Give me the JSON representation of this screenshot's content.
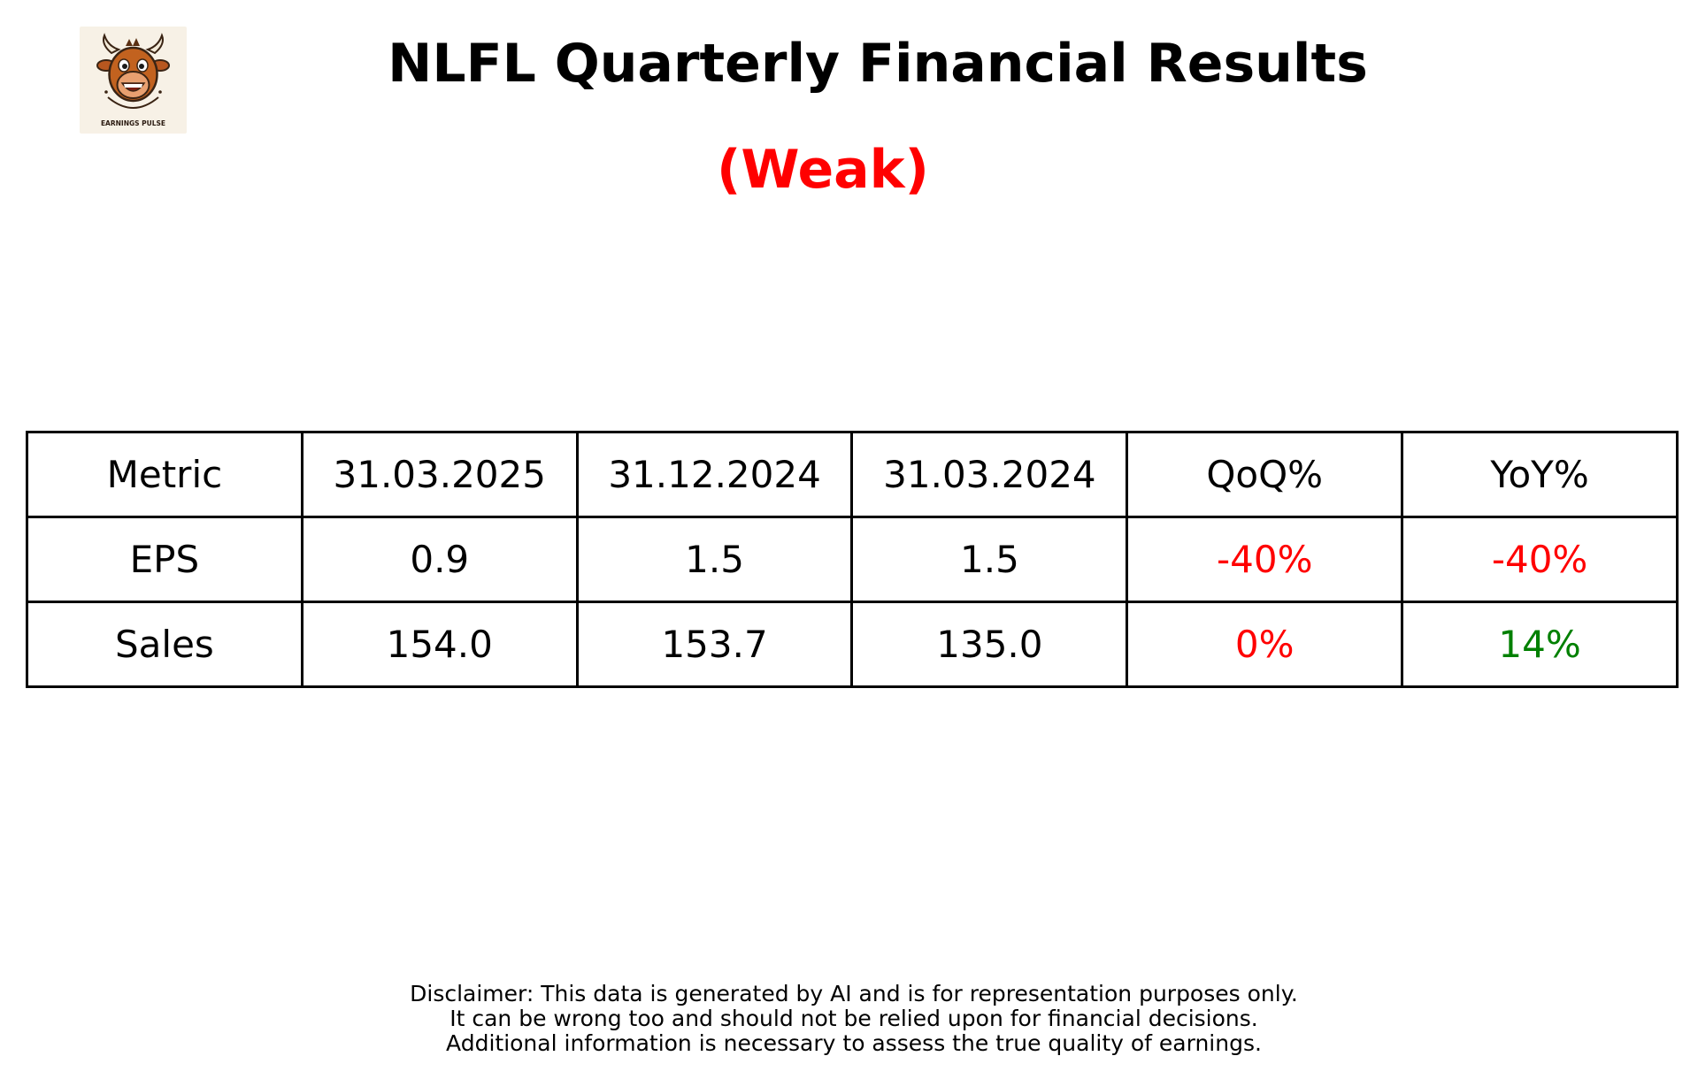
{
  "header": {
    "title": "NLFL Quarterly Financial Results",
    "rating": "(Weak)",
    "rating_color": "#ff0000"
  },
  "logo": {
    "icon": "bull-mascot-icon",
    "text": "EARNINGS PULSE"
  },
  "colors": {
    "negative": "#ff0000",
    "positive": "#008000",
    "neutral": "#000000"
  },
  "chart_data": {
    "type": "table",
    "title": "NLFL Quarterly Financial Results",
    "subtitle": "(Weak)",
    "columns": [
      "Metric",
      "31.03.2025",
      "31.12.2024",
      "31.03.2024",
      "QoQ%",
      "YoY%"
    ],
    "rows": [
      {
        "cells": [
          "EPS",
          "0.9",
          "1.5",
          "1.5",
          "-40%",
          "-40%"
        ],
        "colors": [
          "#000000",
          "#000000",
          "#000000",
          "#000000",
          "#ff0000",
          "#ff0000"
        ]
      },
      {
        "cells": [
          "Sales",
          "154.0",
          "153.7",
          "135.0",
          "0%",
          "14%"
        ],
        "colors": [
          "#000000",
          "#000000",
          "#000000",
          "#000000",
          "#ff0000",
          "#008000"
        ]
      }
    ]
  },
  "disclaimer": {
    "lines": [
      "Disclaimer: This data is generated by AI and is for representation purposes only.",
      "It can be wrong too and should not be relied upon for financial decisions.",
      "Additional information is necessary to assess the true quality of earnings."
    ]
  }
}
